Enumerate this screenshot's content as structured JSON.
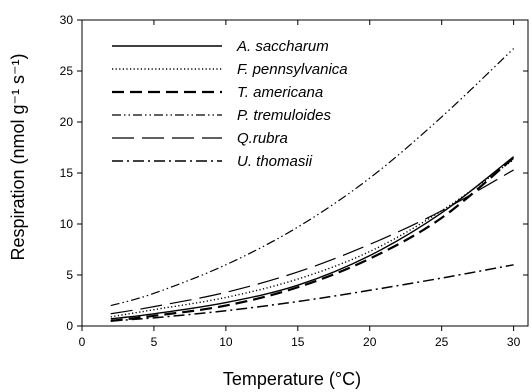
{
  "chart_data": {
    "type": "line",
    "xlabel": "Temperature (°C)",
    "ylabel": "Respiration (nmol g⁻¹ s⁻¹)",
    "xlim": [
      0,
      31
    ],
    "ylim": [
      0,
      30
    ],
    "xticks": [
      0,
      5,
      10,
      15,
      20,
      25,
      30
    ],
    "yticks": [
      0,
      5,
      10,
      15,
      20,
      25,
      30
    ],
    "grid": false,
    "legend_position": "top-left",
    "x": [
      2,
      5,
      10,
      15,
      20,
      25,
      30
    ],
    "series": [
      {
        "name": "A. saccharum",
        "style": "solid",
        "values": [
          0.7,
          1.2,
          2.3,
          4.0,
          6.9,
          11.1,
          16.6
        ]
      },
      {
        "name": "F. pennsylvanica",
        "style": "dotted",
        "values": [
          0.9,
          1.6,
          2.8,
          4.6,
          7.3,
          11.3,
          16.3
        ]
      },
      {
        "name": "T. americana",
        "style": "dashed",
        "values": [
          0.5,
          1.0,
          2.0,
          3.8,
          6.6,
          10.6,
          16.5
        ]
      },
      {
        "name": "P. tremuloides",
        "style": "dash-dot-dot",
        "values": [
          2.0,
          3.2,
          6.0,
          9.7,
          14.5,
          20.5,
          27.2
        ]
      },
      {
        "name": "Q.rubra",
        "style": "long-dash",
        "values": [
          1.2,
          1.9,
          3.3,
          5.3,
          8.0,
          11.3,
          15.3
        ]
      },
      {
        "name": "U. thomasii",
        "style": "dash-dot",
        "values": [
          0.5,
          0.8,
          1.5,
          2.4,
          3.5,
          4.7,
          6.0
        ]
      }
    ]
  }
}
